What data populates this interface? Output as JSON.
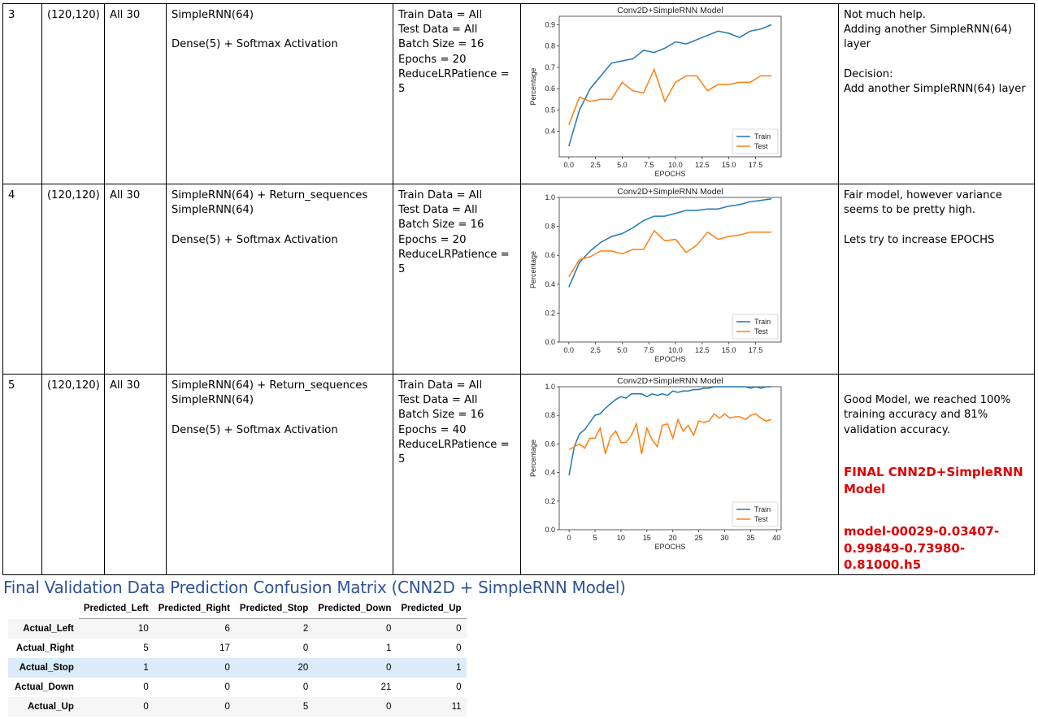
{
  "rows": [
    {
      "num": "3",
      "size": "(120,120)",
      "frames": "All 30",
      "arch": "SimpleRNN(64)\n\nDense(5) + Softmax Activation",
      "params": "Train Data = All\nTest Data = All\nBatch Size = 16\nEpochs = 20\nReduceLRPatience = 5",
      "notes": "Not much help.\nAdding another SimpleRNN(64) layer\n\nDecision:\nAdd another SimpleRNN(64) layer"
    },
    {
      "num": "4",
      "size": "(120,120)",
      "frames": "All 30",
      "arch": "SimpleRNN(64) + Return_sequences\nSimpleRNN(64)\n\nDense(5) + Softmax Activation",
      "params": "Train Data = All\nTest Data = All\nBatch Size = 16\nEpochs = 20\nReduceLRPatience = 5",
      "notes": "Fair model, however variance seems to be pretty high.\n\nLets try to increase EPOCHS"
    },
    {
      "num": "5",
      "size": "(120,120)",
      "frames": "All 30",
      "arch": "SimpleRNN(64) + Return_sequences\nSimpleRNN(64)\n\nDense(5) + Softmax Activation",
      "params": "Train Data = All\nTest Data = All\nBatch Size = 16\nEpochs = 40\nReduceLRPatience = 5",
      "notes": "Good Model, we reached 100% training accuracy and 81% validation accuracy.",
      "final_title": "FINAL CNN2D+SimpleRNN Model",
      "final_file": "model-00029-0.03407-0.99849-0.73980-0.81000.h5"
    }
  ],
  "colors": {
    "train": "#1f77b4",
    "test": "#ff7f0e",
    "heading": "#2f5496",
    "final": "#e00000",
    "highlight_row": "#dbebf9"
  },
  "chart_data": [
    {
      "type": "line",
      "title": "Conv2D+SimpleRNN Model",
      "xlabel": "EPOCHS",
      "ylabel": "Percentage",
      "xlim": [
        -0.9,
        19.9
      ],
      "ylim": [
        0.28,
        0.94
      ],
      "xticks": [
        "0.0",
        "2.5",
        "5.0",
        "7.5",
        "10.0",
        "12.5",
        "15.0",
        "17.5"
      ],
      "xtick_values": [
        0,
        2.5,
        5,
        7.5,
        10,
        12.5,
        15,
        17.5
      ],
      "yticks": [
        "0.4",
        "0.5",
        "0.6",
        "0.7",
        "0.8",
        "0.9"
      ],
      "ytick_values": [
        0.4,
        0.5,
        0.6,
        0.7,
        0.8,
        0.9
      ],
      "legend": "bottom-right",
      "x": [
        0,
        1,
        2,
        3,
        4,
        5,
        6,
        7,
        8,
        9,
        10,
        11,
        12,
        13,
        14,
        15,
        16,
        17,
        18,
        19
      ],
      "series": [
        {
          "name": "Train",
          "values": [
            0.33,
            0.5,
            0.6,
            0.66,
            0.72,
            0.73,
            0.74,
            0.78,
            0.77,
            0.79,
            0.82,
            0.81,
            0.83,
            0.85,
            0.87,
            0.86,
            0.84,
            0.87,
            0.88,
            0.9
          ]
        },
        {
          "name": "Test",
          "values": [
            0.43,
            0.56,
            0.54,
            0.55,
            0.55,
            0.63,
            0.59,
            0.58,
            0.69,
            0.54,
            0.63,
            0.66,
            0.66,
            0.59,
            0.62,
            0.62,
            0.63,
            0.63,
            0.66,
            0.66
          ]
        }
      ]
    },
    {
      "type": "line",
      "title": "Conv2D+SimpleRNN Model",
      "xlabel": "EPOCHS",
      "ylabel": "Percentage",
      "xlim": [
        -0.9,
        19.9
      ],
      "ylim": [
        0.0,
        1.0
      ],
      "xticks": [
        "0.0",
        "2.5",
        "5.0",
        "7.5",
        "10.0",
        "12.5",
        "15.0",
        "17.5"
      ],
      "xtick_values": [
        0,
        2.5,
        5,
        7.5,
        10,
        12.5,
        15,
        17.5
      ],
      "yticks": [
        "0.0",
        "0.2",
        "0.4",
        "0.6",
        "0.8",
        "1.0"
      ],
      "ytick_values": [
        0,
        0.2,
        0.4,
        0.6,
        0.8,
        1.0
      ],
      "legend": "bottom-right",
      "x": [
        0,
        1,
        2,
        3,
        4,
        5,
        6,
        7,
        8,
        9,
        10,
        11,
        12,
        13,
        14,
        15,
        16,
        17,
        18,
        19
      ],
      "series": [
        {
          "name": "Train",
          "values": [
            0.38,
            0.55,
            0.63,
            0.69,
            0.73,
            0.75,
            0.79,
            0.84,
            0.87,
            0.87,
            0.89,
            0.91,
            0.91,
            0.92,
            0.92,
            0.94,
            0.95,
            0.97,
            0.98,
            0.99
          ]
        },
        {
          "name": "Test",
          "values": [
            0.45,
            0.57,
            0.59,
            0.63,
            0.63,
            0.61,
            0.64,
            0.64,
            0.77,
            0.7,
            0.71,
            0.62,
            0.67,
            0.76,
            0.71,
            0.73,
            0.74,
            0.76,
            0.76,
            0.76
          ]
        }
      ]
    },
    {
      "type": "line",
      "title": "Conv2D+SimpleRNN Model",
      "xlabel": "EPOCHS",
      "ylabel": "Percentage",
      "xlim": [
        -1.9,
        40.9
      ],
      "ylim": [
        0.0,
        1.0
      ],
      "xticks": [
        "0",
        "5",
        "10",
        "15",
        "20",
        "25",
        "30",
        "35",
        "40"
      ],
      "xtick_values": [
        0,
        5,
        10,
        15,
        20,
        25,
        30,
        35,
        40
      ],
      "yticks": [
        "0.0",
        "0.2",
        "0.4",
        "0.6",
        "0.8",
        "1.0"
      ],
      "ytick_values": [
        0,
        0.2,
        0.4,
        0.6,
        0.8,
        1.0
      ],
      "legend": "bottom-right",
      "x": [
        0,
        1,
        2,
        3,
        4,
        5,
        6,
        7,
        8,
        9,
        10,
        11,
        12,
        13,
        14,
        15,
        16,
        17,
        18,
        19,
        20,
        21,
        22,
        23,
        24,
        25,
        26,
        27,
        28,
        29,
        30,
        31,
        32,
        33,
        34,
        35,
        36,
        37,
        38,
        39
      ],
      "series": [
        {
          "name": "Train",
          "values": [
            0.38,
            0.58,
            0.67,
            0.7,
            0.75,
            0.8,
            0.81,
            0.85,
            0.88,
            0.91,
            0.93,
            0.92,
            0.95,
            0.95,
            0.95,
            0.93,
            0.95,
            0.94,
            0.95,
            0.94,
            0.97,
            0.96,
            0.97,
            0.97,
            0.98,
            0.98,
            0.99,
            0.99,
            1.0,
            1.0,
            1.0,
            1.0,
            1.0,
            1.0,
            1.0,
            0.99,
            1.0,
            0.99,
            1.0,
            1.0
          ]
        },
        {
          "name": "Test",
          "values": [
            0.56,
            0.58,
            0.6,
            0.57,
            0.64,
            0.64,
            0.71,
            0.53,
            0.65,
            0.69,
            0.61,
            0.61,
            0.66,
            0.74,
            0.53,
            0.71,
            0.63,
            0.58,
            0.73,
            0.74,
            0.64,
            0.77,
            0.69,
            0.73,
            0.66,
            0.76,
            0.75,
            0.76,
            0.81,
            0.78,
            0.81,
            0.78,
            0.79,
            0.79,
            0.77,
            0.8,
            0.81,
            0.78,
            0.76,
            0.77
          ]
        }
      ]
    }
  ],
  "heading": "Final Validation Data Prediction Confusion Matrix (CNN2D + SimpleRNN Model)",
  "confusion": {
    "columns": [
      "",
      "Predicted_Left",
      "Predicted_Right",
      "Predicted_Stop",
      "Predicted_Down",
      "Predicted_Up"
    ],
    "rows": [
      {
        "label": "Actual_Left",
        "values": [
          "10",
          "6",
          "2",
          "0",
          "0"
        ]
      },
      {
        "label": "Actual_Right",
        "values": [
          "5",
          "17",
          "0",
          "1",
          "0"
        ]
      },
      {
        "label": "Actual_Stop",
        "values": [
          "1",
          "0",
          "20",
          "0",
          "1"
        ]
      },
      {
        "label": "Actual_Down",
        "values": [
          "0",
          "0",
          "0",
          "21",
          "0"
        ]
      },
      {
        "label": "Actual_Up",
        "values": [
          "0",
          "0",
          "5",
          "0",
          "11"
        ]
      }
    ]
  }
}
